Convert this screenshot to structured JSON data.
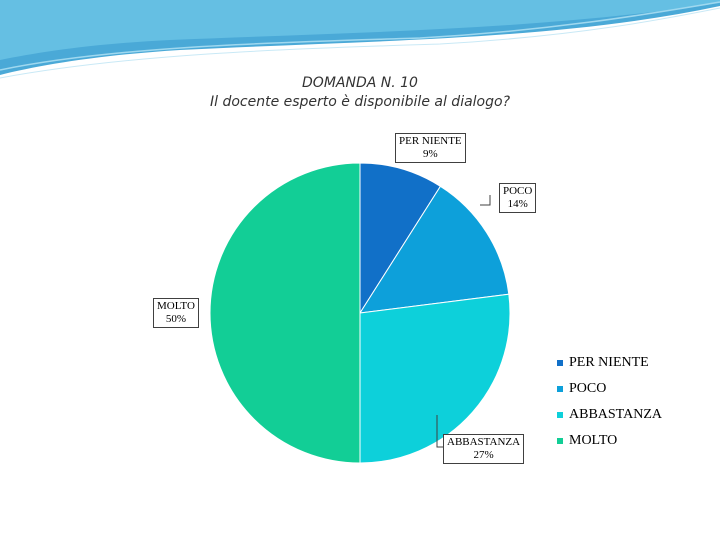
{
  "title_line1": "DOMANDA N. 10",
  "title_line2": "Il docente esperto è disponibile al dialogo?",
  "chart_data": {
    "type": "pie",
    "categories": [
      "PER NIENTE",
      "POCO",
      "ABBASTANZA",
      "MOLTO"
    ],
    "values": [
      9,
      14,
      27,
      50
    ],
    "percent_labels": [
      "9%",
      "14%",
      "27%",
      "50%"
    ],
    "colors": [
      "#1170C8",
      "#0DA0DA",
      "#0DD0DA",
      "#12CE96"
    ],
    "legend_position": "right"
  }
}
